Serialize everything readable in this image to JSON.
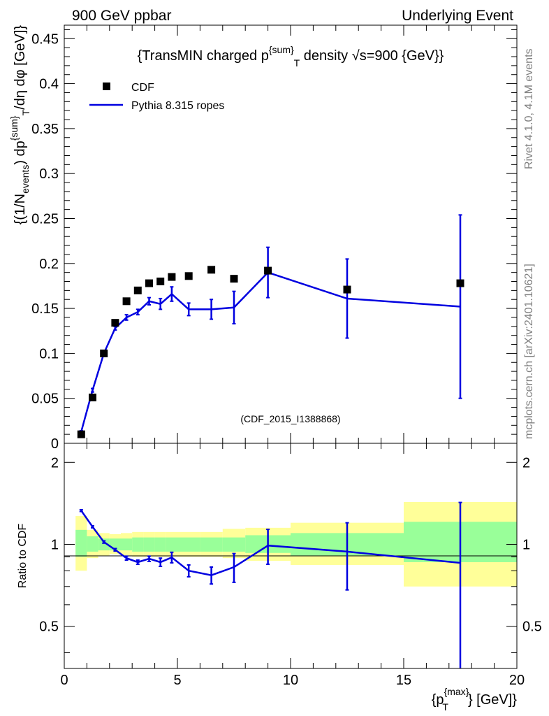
{
  "header": {
    "left": "900 GeV ppbar",
    "right": "Underlying Event"
  },
  "side": {
    "rivet": "Rivet 4.1.0,  4.1M events",
    "mcplots": "mcplots.cern.ch [arXiv:2401.10621]"
  },
  "colors": {
    "mc": "#0000e0",
    "data": "#000000",
    "band_green": "#99ff99",
    "band_yellow": "#ffff99"
  },
  "chart_data": [
    {
      "type": "scatter",
      "panel": "main",
      "title": "{TransMIN charged p^{sum}_T density √s=900 {GeV}}",
      "title_parts": {
        "pre": "{TransMIN charged p",
        "sup": "{sum",
        "sup_close": "}",
        "sub": "T",
        "post": " density √s=900 {GeV}}"
      },
      "ylabel": "{(1/N_events) dp^{sum}_T/dη dφ [GeV]}",
      "ylabel_parts": {
        "a": "{(1/N",
        "a_sub": "events",
        "b": ") dp",
        "b_sup": "{sum",
        "b_sup_close": "}",
        "b_sub": "T",
        "c": "/dη  dφ [GeV]}"
      },
      "xlim": [
        0,
        20
      ],
      "ylim": [
        0,
        0.465
      ],
      "y_ticks": [
        "0",
        "0.05",
        "0.1",
        "0.15",
        "0.2",
        "0.25",
        "0.3",
        "0.35",
        "0.4",
        "0.45"
      ],
      "watermark": "(CDF_2015_I1388868)",
      "legend": {
        "placement": "top-left",
        "entries": [
          "CDF",
          "Pythia 8.315 ropes"
        ]
      },
      "series": [
        {
          "name": "CDF",
          "kind": "markers",
          "x": [
            0.75,
            1.25,
            1.75,
            2.25,
            2.75,
            3.25,
            3.75,
            4.25,
            4.75,
            5.5,
            6.5,
            7.5,
            9.0,
            12.5,
            17.5
          ],
          "y": [
            0.01,
            0.051,
            0.1,
            0.134,
            0.158,
            0.17,
            0.178,
            0.18,
            0.185,
            0.186,
            0.193,
            0.183,
            0.192,
            0.171,
            0.178
          ]
        },
        {
          "name": "Pythia 8.315 ropes",
          "kind": "line",
          "x": [
            0.75,
            1.25,
            1.75,
            2.25,
            2.75,
            3.25,
            3.75,
            4.25,
            4.75,
            5.5,
            6.5,
            7.5,
            9.0,
            12.5,
            17.5
          ],
          "y": [
            0.013,
            0.059,
            0.1,
            0.128,
            0.14,
            0.146,
            0.158,
            0.155,
            0.166,
            0.149,
            0.149,
            0.151,
            0.19,
            0.161,
            0.152
          ],
          "yerr": [
            0.001,
            0.002,
            0.002,
            0.002,
            0.003,
            0.003,
            0.004,
            0.006,
            0.008,
            0.007,
            0.011,
            0.018,
            0.028,
            0.044,
            0.102
          ]
        }
      ]
    },
    {
      "type": "line",
      "panel": "ratio",
      "ylabel": "Ratio to CDF",
      "xlabel": "{p_T^{max}} [GeV]}",
      "xlabel_parts": {
        "a": "{p",
        "a_sup": "{max",
        "a_sup_close": "}",
        "a_sub": "T",
        "b": "} [GeV]}"
      },
      "xlim": [
        0,
        20
      ],
      "ylim": [
        0.35,
        2.35
      ],
      "x_ticks": [
        "0",
        "5",
        "10",
        "15",
        "20"
      ],
      "y_ticks": [
        "0.5",
        "1",
        "2"
      ],
      "bands": {
        "x_edges": [
          0.5,
          1.0,
          1.5,
          2.0,
          2.5,
          3.0,
          3.5,
          4.0,
          4.5,
          5.0,
          6.0,
          7.0,
          8.0,
          10.0,
          15.0,
          20.0
        ],
        "green_lo": [
          0.9,
          0.94,
          0.95,
          0.95,
          0.95,
          0.94,
          0.94,
          0.94,
          0.94,
          0.94,
          0.94,
          0.94,
          0.93,
          0.91,
          0.86
        ],
        "green_hi": [
          1.13,
          1.07,
          1.05,
          1.05,
          1.05,
          1.06,
          1.06,
          1.06,
          1.06,
          1.06,
          1.06,
          1.06,
          1.08,
          1.1,
          1.21
        ],
        "yellow_lo": [
          0.8,
          0.89,
          0.91,
          0.92,
          0.91,
          0.9,
          0.9,
          0.9,
          0.9,
          0.9,
          0.9,
          0.89,
          0.87,
          0.84,
          0.7
        ],
        "yellow_hi": [
          1.27,
          1.13,
          1.1,
          1.09,
          1.1,
          1.11,
          1.11,
          1.11,
          1.11,
          1.11,
          1.11,
          1.14,
          1.15,
          1.2,
          1.43
        ]
      },
      "series": [
        {
          "name": "Pythia 8.315 ropes / CDF",
          "x": [
            0.75,
            1.25,
            1.75,
            2.25,
            2.75,
            3.25,
            3.75,
            4.25,
            4.75,
            5.5,
            6.5,
            7.5,
            9.0,
            12.5,
            17.5
          ],
          "y": [
            1.33,
            1.16,
            1.02,
            0.955,
            0.89,
            0.86,
            0.885,
            0.86,
            0.895,
            0.8,
            0.77,
            0.825,
            0.99,
            0.94,
            0.855
          ],
          "yerr": [
            0.01,
            0.01,
            0.01,
            0.01,
            0.015,
            0.015,
            0.02,
            0.03,
            0.04,
            0.04,
            0.055,
            0.1,
            0.145,
            0.26,
            0.57
          ]
        }
      ]
    }
  ]
}
